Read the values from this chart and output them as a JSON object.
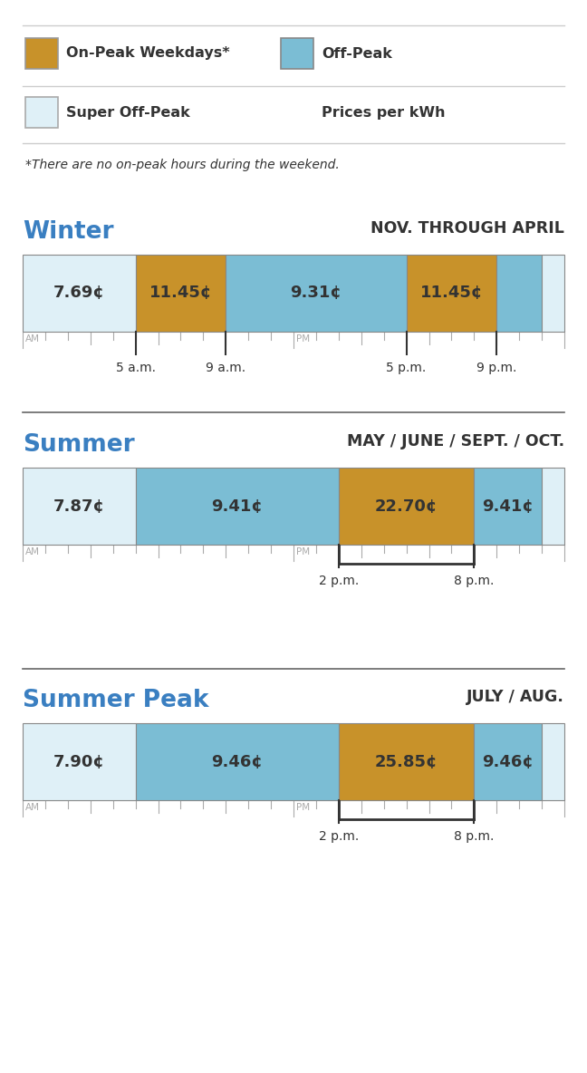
{
  "colors": {
    "on_peak": "#C8922A",
    "off_peak": "#7BBDD4",
    "super_off_peak": "#DFF0F7",
    "border": "#555555",
    "blue_title": "#3A7FC1",
    "dark_text": "#333333",
    "gray_text": "#AAAAAA",
    "divider": "#CCCCCC",
    "bg": "#FFFFFF"
  },
  "legend": {
    "on_peak_label": "On-Peak Weekdays*",
    "off_peak_label": "Off-Peak",
    "super_off_peak_label": "Super Off-Peak",
    "prices_label": "Prices per kWh"
  },
  "footnote": "*There are no on-peak hours during the weekend.",
  "seasons": [
    {
      "name": "Winter",
      "subtitle": "NOV. THROUGH APRIL",
      "segments": [
        {
          "label": "7.69¢",
          "color": "super_off_peak",
          "start": 0,
          "end": 5
        },
        {
          "label": "11.45¢",
          "color": "on_peak",
          "start": 5,
          "end": 9
        },
        {
          "label": "9.31¢",
          "color": "off_peak",
          "start": 9,
          "end": 17
        },
        {
          "label": "11.45¢",
          "color": "on_peak",
          "start": 17,
          "end": 21
        },
        {
          "label": "",
          "color": "off_peak",
          "start": 21,
          "end": 23
        },
        {
          "label": "",
          "color": "super_off_peak",
          "start": 23,
          "end": 24
        }
      ],
      "tick_labels": [
        {
          "hour": 5,
          "label": "5 a.m."
        },
        {
          "hour": 9,
          "label": "9 a.m."
        },
        {
          "hour": 17,
          "label": "5 p.m."
        },
        {
          "hour": 21,
          "label": "9 p.m."
        }
      ],
      "bracket": null
    },
    {
      "name": "Summer",
      "subtitle": "MAY / JUNE / SEPT. / OCT.",
      "segments": [
        {
          "label": "7.87¢",
          "color": "super_off_peak",
          "start": 0,
          "end": 5
        },
        {
          "label": "9.41¢",
          "color": "off_peak",
          "start": 5,
          "end": 14
        },
        {
          "label": "22.70¢",
          "color": "on_peak",
          "start": 14,
          "end": 20
        },
        {
          "label": "9.41¢",
          "color": "off_peak",
          "start": 20,
          "end": 23
        },
        {
          "label": "",
          "color": "super_off_peak",
          "start": 23,
          "end": 24
        }
      ],
      "tick_labels": [
        {
          "hour": 14,
          "label": "2 p.m."
        },
        {
          "hour": 20,
          "label": "8 p.m."
        }
      ],
      "bracket": {
        "start": 14,
        "end": 20
      }
    },
    {
      "name": "Summer Peak",
      "subtitle": "JULY / AUG.",
      "segments": [
        {
          "label": "7.90¢",
          "color": "super_off_peak",
          "start": 0,
          "end": 5
        },
        {
          "label": "9.46¢",
          "color": "off_peak",
          "start": 5,
          "end": 14
        },
        {
          "label": "25.85¢",
          "color": "on_peak",
          "start": 14,
          "end": 20
        },
        {
          "label": "9.46¢",
          "color": "off_peak",
          "start": 20,
          "end": 23
        },
        {
          "label": "",
          "color": "super_off_peak",
          "start": 23,
          "end": 24
        }
      ],
      "tick_labels": [
        {
          "hour": 14,
          "label": "2 p.m."
        },
        {
          "hour": 20,
          "label": "8 p.m."
        }
      ],
      "bracket": {
        "start": 14,
        "end": 20
      }
    }
  ]
}
